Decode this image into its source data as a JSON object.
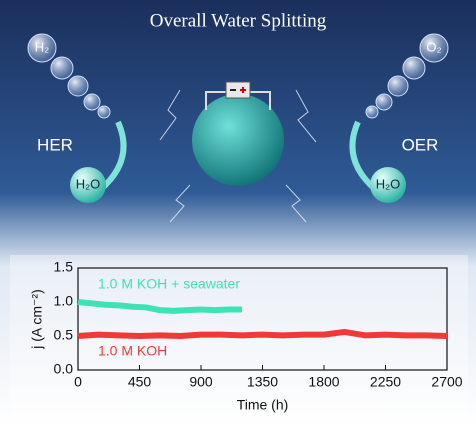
{
  "illustration": {
    "title": "Overall Water Splitting",
    "h2": "H₂",
    "o2": "O₂",
    "her": "HER",
    "oer": "OER",
    "h2o_left": "H₂O",
    "h2o_right": "H₂O"
  },
  "chart_data": {
    "type": "line",
    "xlabel": "Time (h)",
    "ylabel": "j (A cm⁻²)",
    "xlim": [
      0,
      2700
    ],
    "xticks": [
      0,
      450,
      900,
      1350,
      1800,
      2250,
      2700
    ],
    "ylim": [
      0,
      1.5
    ],
    "yticks": [
      {
        "value": 0,
        "label": "0.0"
      },
      0.5,
      {
        "value": 1,
        "label": "1.0"
      },
      1.5
    ],
    "series": [
      {
        "name": "1.0 M KOH + seawater",
        "color": "#3ee3b4",
        "x": [
          0,
          100,
          200,
          300,
          400,
          500,
          600,
          700,
          800,
          900,
          1000,
          1100,
          1200
        ],
        "values": [
          1.0,
          0.98,
          0.96,
          0.95,
          0.93,
          0.92,
          0.88,
          0.87,
          0.88,
          0.89,
          0.88,
          0.89,
          0.89
        ]
      },
      {
        "name": "1.0 M KOH",
        "color": "#f03a3a",
        "x": [
          0,
          150,
          300,
          450,
          600,
          750,
          900,
          1050,
          1200,
          1350,
          1500,
          1650,
          1800,
          1950,
          2100,
          2250,
          2400,
          2550,
          2700
        ],
        "values": [
          0.5,
          0.52,
          0.51,
          0.5,
          0.51,
          0.5,
          0.52,
          0.52,
          0.51,
          0.52,
          0.51,
          0.52,
          0.52,
          0.56,
          0.51,
          0.52,
          0.51,
          0.51,
          0.5
        ]
      }
    ]
  }
}
